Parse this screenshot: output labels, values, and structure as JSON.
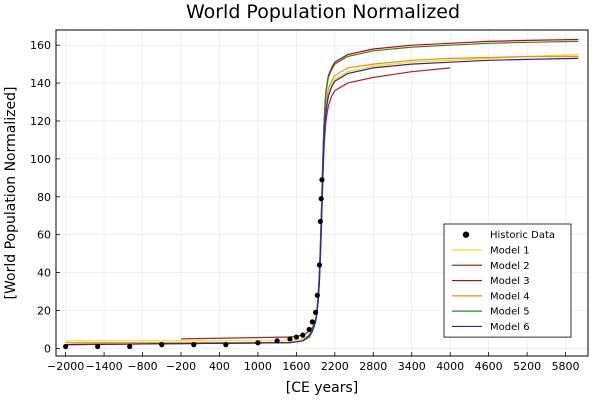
{
  "chart_data": {
    "type": "line",
    "title": "World Population Normalized",
    "xlabel": "[CE years]",
    "ylabel": "[World Population Normalized]",
    "xlim": [
      -2150,
      6150
    ],
    "ylim": [
      -4,
      168
    ],
    "xticks": [
      -2000,
      -1400,
      -800,
      -200,
      400,
      1000,
      1600,
      2200,
      2800,
      3400,
      4000,
      4600,
      5200,
      5800
    ],
    "xtick_labels": [
      "−2000",
      "−1400",
      "−800",
      "−200",
      "400",
      "1000",
      "1600",
      "2200",
      "2800",
      "3400",
      "4000",
      "4600",
      "5200",
      "5800"
    ],
    "yticks": [
      0,
      20,
      40,
      60,
      80,
      100,
      120,
      140,
      160
    ],
    "ytick_labels": [
      "0",
      "20",
      "40",
      "60",
      "80",
      "100",
      "120",
      "140",
      "160"
    ],
    "grid": true,
    "legend_position": "bottom-right",
    "scatter": {
      "name": "Historic Data",
      "color": "#000000",
      "points": [
        [
          -2000,
          1
        ],
        [
          -1500,
          1
        ],
        [
          -1000,
          1
        ],
        [
          -500,
          2
        ],
        [
          0,
          2
        ],
        [
          500,
          2
        ],
        [
          1000,
          3
        ],
        [
          1300,
          4
        ],
        [
          1500,
          5
        ],
        [
          1600,
          6
        ],
        [
          1700,
          7
        ],
        [
          1800,
          10
        ],
        [
          1850,
          14
        ],
        [
          1900,
          19
        ],
        [
          1927,
          28
        ],
        [
          1960,
          44
        ],
        [
          1974,
          67
        ],
        [
          1987,
          79
        ],
        [
          1999,
          89
        ]
      ]
    },
    "series": [
      {
        "name": "Model 1",
        "color": "#ffd800",
        "x": [
          -2000,
          1500,
          1700,
          1800,
          1850,
          1900,
          1920,
          1940,
          1960,
          1975,
          1990,
          2000,
          2010,
          2020,
          2030,
          2045,
          2060,
          2080,
          2100,
          2150,
          2200,
          2400,
          2800,
          3400,
          4000,
          4600,
          5200,
          6000
        ],
        "y": [
          4,
          4,
          5,
          7,
          9,
          14,
          18,
          25,
          36,
          50,
          66,
          78,
          90,
          101,
          110,
          119,
          125,
          130,
          134,
          139,
          142,
          146,
          149,
          151,
          152,
          153,
          154,
          155
        ]
      },
      {
        "name": "Model 2",
        "color": "#b22222",
        "x": [
          -200,
          1500,
          1700,
          1800,
          1850,
          1900,
          1920,
          1940,
          1960,
          1975,
          1990,
          2000,
          2010,
          2020,
          2030,
          2045,
          2060,
          2080,
          2100,
          2150,
          2200,
          2400,
          2800,
          3400,
          4000
        ],
        "y": [
          5,
          6,
          7,
          9,
          11,
          15,
          19,
          25,
          35,
          48,
          62,
          73,
          84,
          95,
          104,
          113,
          119,
          124,
          128,
          133,
          136,
          140,
          143,
          146,
          148
        ]
      },
      {
        "name": "Model 3",
        "color": "#cc0000",
        "x": [
          -2000,
          1500,
          1700,
          1800,
          1850,
          1900,
          1920,
          1940,
          1960,
          1975,
          1990,
          2000,
          2010,
          2020,
          2030,
          2045,
          2060,
          2080,
          2100,
          2150,
          2200,
          2400,
          2800,
          3400,
          4000,
          4600,
          5200,
          6000
        ],
        "y": [
          2,
          3,
          4,
          7,
          10,
          15,
          20,
          28,
          40,
          55,
          72,
          84,
          96,
          108,
          118,
          128,
          135,
          140,
          144,
          148,
          151,
          155,
          158,
          160,
          161,
          162,
          162.5,
          163
        ]
      },
      {
        "name": "Model 4",
        "color": "#e69500",
        "x": [
          -2000,
          1500,
          1700,
          1800,
          1850,
          1900,
          1920,
          1940,
          1960,
          1975,
          1990,
          2000,
          2010,
          2020,
          2030,
          2045,
          2060,
          2080,
          2100,
          2150,
          2200,
          2400,
          2800,
          3400,
          4000,
          4600,
          5200,
          6000
        ],
        "y": [
          3,
          3,
          4,
          6,
          9,
          14,
          18,
          26,
          38,
          52,
          68,
          80,
          92,
          103,
          113,
          122,
          128,
          133,
          137,
          141,
          144,
          148,
          150,
          152,
          153,
          153.5,
          154,
          154
        ]
      },
      {
        "name": "Model 5",
        "color": "#228b22",
        "x": [
          -2000,
          1500,
          1700,
          1800,
          1850,
          1900,
          1920,
          1940,
          1960,
          1975,
          1990,
          2000,
          2010,
          2020,
          2030,
          2045,
          2060,
          2080,
          2100,
          2150,
          2200,
          2400,
          2800,
          3400,
          4000,
          4600,
          5200,
          6000
        ],
        "y": [
          2,
          3,
          4,
          7,
          10,
          15,
          20,
          28,
          40,
          55,
          72,
          84,
          96,
          107,
          117,
          127,
          134,
          139,
          143,
          147,
          150,
          154,
          157,
          159,
          160,
          161,
          161.5,
          162
        ]
      },
      {
        "name": "Model 6",
        "color": "#2222cc",
        "x": [
          -2000,
          1500,
          1700,
          1800,
          1850,
          1900,
          1920,
          1940,
          1960,
          1975,
          1990,
          2000,
          2010,
          2020,
          2030,
          2045,
          2060,
          2080,
          2100,
          2150,
          2200,
          2400,
          2800,
          3400,
          4000,
          4600,
          5200,
          6000
        ],
        "y": [
          2,
          3,
          4,
          6,
          9,
          14,
          18,
          25,
          36,
          50,
          66,
          78,
          89,
          100,
          109,
          118,
          124,
          129,
          133,
          138,
          141,
          145,
          148,
          150,
          151,
          152,
          152.5,
          153
        ]
      }
    ]
  }
}
